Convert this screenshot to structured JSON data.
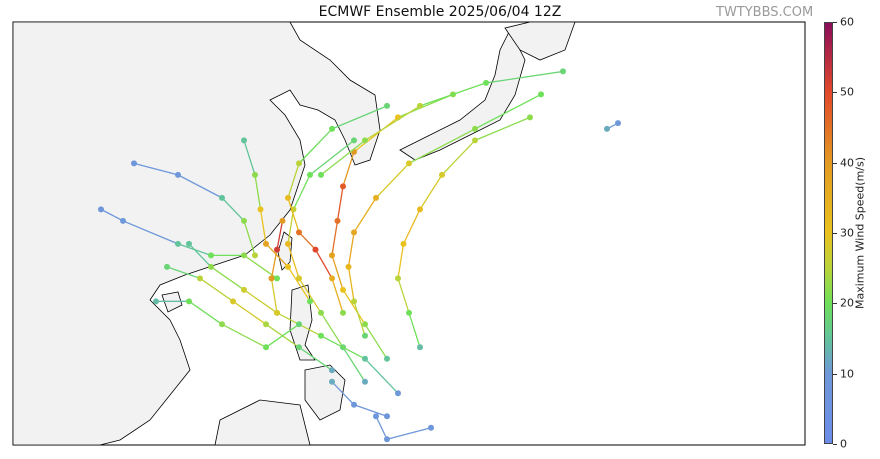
{
  "title": "ECMWF Ensemble 2025/06/04 12Z",
  "watermark": "TWTYBBS.COM",
  "colorbar": {
    "label": "Maximum Wind Speed(m/s)",
    "ticks": [
      "0",
      "10",
      "20",
      "30",
      "40",
      "50",
      "60"
    ],
    "range": [
      0,
      60
    ],
    "stops": [
      [
        0,
        "#6b8ce8"
      ],
      [
        10,
        "#6f98d8"
      ],
      [
        15,
        "#62c49a"
      ],
      [
        20,
        "#6fe05a"
      ],
      [
        25,
        "#b9d43a"
      ],
      [
        30,
        "#e9c21e"
      ],
      [
        40,
        "#e39a22"
      ],
      [
        50,
        "#e2492a"
      ],
      [
        60,
        "#8b0d5a"
      ]
    ]
  },
  "map": {
    "lon_range": [
      96,
      168
    ],
    "lat_range": [
      6.5,
      43.3
    ],
    "land_color": "#f2f2f2",
    "coast_color": "#000000"
  },
  "tracks": [
    [
      [
        128,
        12,
        12
      ],
      [
        126,
        15,
        18
      ],
      [
        124,
        18,
        22
      ],
      [
        122,
        21,
        28
      ],
      [
        121,
        24,
        32
      ],
      [
        121.5,
        27,
        26
      ],
      [
        123,
        30,
        20
      ],
      [
        127,
        33,
        18
      ]
    ],
    [
      [
        130,
        14,
        15
      ],
      [
        128,
        17,
        22
      ],
      [
        126,
        20,
        30
      ],
      [
        125,
        23,
        38
      ],
      [
        125.5,
        26,
        45
      ],
      [
        126,
        29,
        48
      ],
      [
        127,
        32,
        40
      ],
      [
        131,
        35,
        30
      ],
      [
        136,
        37,
        22
      ]
    ],
    [
      [
        125,
        13,
        12
      ],
      [
        122,
        15,
        18
      ],
      [
        119,
        17,
        24
      ],
      [
        116,
        19,
        28
      ],
      [
        113,
        21,
        25
      ],
      [
        110,
        22,
        18
      ]
    ],
    [
      [
        131,
        11,
        10
      ],
      [
        128,
        14,
        15
      ],
      [
        124,
        16,
        20
      ],
      [
        120,
        18,
        25
      ],
      [
        117,
        20,
        27
      ],
      [
        114,
        22,
        22
      ],
      [
        112,
        24,
        15
      ]
    ],
    [
      [
        128,
        16,
        18
      ],
      [
        127,
        19,
        25
      ],
      [
        126.5,
        22,
        33
      ],
      [
        127,
        25,
        37
      ],
      [
        129,
        28,
        35
      ],
      [
        132,
        31,
        28
      ],
      [
        138,
        34,
        22
      ],
      [
        144,
        37,
        20
      ]
    ],
    [
      [
        123,
        19,
        20
      ],
      [
        121,
        22,
        30
      ],
      [
        119,
        24,
        38
      ],
      [
        118.5,
        27,
        30
      ],
      [
        118,
        30,
        22
      ],
      [
        117,
        33,
        15
      ]
    ],
    [
      [
        126,
        18,
        22
      ],
      [
        125,
        21,
        35
      ],
      [
        123.5,
        23.5,
        50
      ],
      [
        122,
        25,
        45
      ],
      [
        121,
        28,
        32
      ],
      [
        122,
        31,
        25
      ],
      [
        125,
        34,
        20
      ],
      [
        130,
        36,
        18
      ]
    ],
    [
      [
        133,
        15,
        14
      ],
      [
        132,
        18,
        20
      ],
      [
        131,
        21,
        25
      ],
      [
        131.5,
        24,
        30
      ],
      [
        133,
        27,
        32
      ],
      [
        135,
        30,
        28
      ],
      [
        138,
        33,
        25
      ],
      [
        143,
        35,
        22
      ]
    ],
    [
      [
        120,
        21,
        20
      ],
      [
        117,
        23,
        22
      ],
      [
        114,
        23,
        20
      ],
      [
        111,
        24,
        15
      ],
      [
        106,
        26,
        10
      ],
      [
        104,
        27,
        8
      ]
    ],
    [
      [
        129,
        9,
        8
      ],
      [
        130,
        7,
        10
      ],
      [
        134,
        8,
        8
      ]
    ],
    [
      [
        124,
        30,
        20
      ],
      [
        128,
        33,
        22
      ],
      [
        133,
        36,
        25
      ],
      [
        139,
        38,
        20
      ],
      [
        146,
        39,
        18
      ]
    ],
    [
      [
        118,
        23,
        25
      ],
      [
        117,
        26,
        22
      ],
      [
        115,
        28,
        15
      ],
      [
        111,
        30,
        10
      ],
      [
        107,
        31,
        8
      ]
    ],
    [
      [
        122,
        17,
        18
      ],
      [
        119,
        15,
        20
      ],
      [
        115,
        17,
        22
      ],
      [
        112,
        19,
        20
      ],
      [
        109,
        19,
        14
      ]
    ],
    [
      [
        125,
        12,
        12
      ],
      [
        127,
        10,
        10
      ],
      [
        130,
        9,
        8
      ]
    ],
    [
      [
        120.5,
        26,
        40
      ],
      [
        120,
        23.5,
        52
      ],
      [
        119.5,
        21,
        40
      ],
      [
        120,
        18,
        28
      ]
    ],
    [
      [
        150,
        34,
        12
      ],
      [
        151,
        34.5,
        10
      ]
    ]
  ]
}
